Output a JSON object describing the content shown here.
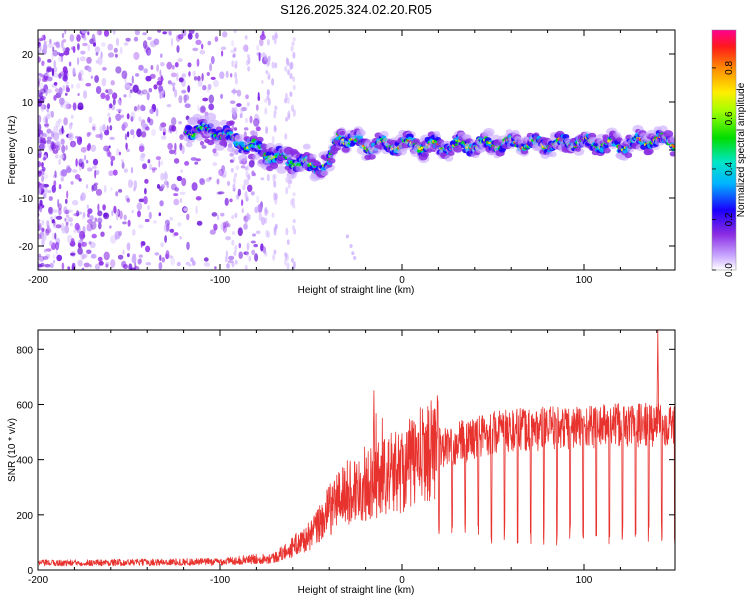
{
  "title": "S126.2025.324.02.20.R05",
  "colors": {
    "snr_line": "#e8322e",
    "blob_purple": "#8a2be2",
    "axis": "#000000"
  },
  "chart_data": [
    {
      "type": "heatmap",
      "xlabel": "Height of straight line (km)",
      "ylabel": "Frequency (Hz)",
      "xlim": [
        -200,
        150
      ],
      "ylim": [
        -25,
        25
      ],
      "xticks": [
        -200,
        -100,
        0,
        100
      ],
      "yticks": [
        -20,
        -10,
        0,
        10,
        20
      ],
      "colorbar": {
        "label": "Normalized spectral amplitude",
        "range": [
          0,
          0.95
        ],
        "ticks": [
          0.0,
          0.2,
          0.4,
          0.6,
          0.8
        ]
      },
      "centerline": [
        {
          "x": -117,
          "y": 4.2
        },
        {
          "x": -100,
          "y": 3.6
        },
        {
          "x": -90,
          "y": 1.8
        },
        {
          "x": -80,
          "y": 0.5
        },
        {
          "x": -70,
          "y": -1.5
        },
        {
          "x": -60,
          "y": -2.2
        },
        {
          "x": -50,
          "y": -3.5
        },
        {
          "x": -40,
          "y": -3.0
        },
        {
          "x": -35,
          "y": 3.0
        },
        {
          "x": -20,
          "y": 0.8
        },
        {
          "x": 0,
          "y": 1.2
        },
        {
          "x": 20,
          "y": 0.8
        },
        {
          "x": 50,
          "y": 1.4
        },
        {
          "x": 80,
          "y": 1.2
        },
        {
          "x": 100,
          "y": 1.8
        },
        {
          "x": 120,
          "y": 0.9
        },
        {
          "x": 140,
          "y": 2.3
        },
        {
          "x": 150,
          "y": 1.5
        }
      ]
    },
    {
      "type": "line",
      "xlabel": "Height of straight line (km)",
      "ylabel": "SNR (10 * v/v)",
      "xlim": [
        -200,
        150
      ],
      "ylim": [
        0,
        870
      ],
      "xticks": [
        -200,
        -100,
        0,
        100
      ],
      "yticks": [
        0,
        200,
        400,
        600,
        800
      ],
      "envelope": [
        {
          "x": -200,
          "y": 25
        },
        {
          "x": -100,
          "y": 30
        },
        {
          "x": -70,
          "y": 45
        },
        {
          "x": -50,
          "y": 120
        },
        {
          "x": -35,
          "y": 250
        },
        {
          "x": -20,
          "y": 300
        },
        {
          "x": 0,
          "y": 350
        },
        {
          "x": 20,
          "y": 440
        },
        {
          "x": 50,
          "y": 500
        },
        {
          "x": 100,
          "y": 520
        },
        {
          "x": 150,
          "y": 530
        }
      ],
      "notable_peaks": [
        {
          "x": -16,
          "y": 650
        },
        {
          "x": 140,
          "y": 870
        }
      ]
    }
  ]
}
